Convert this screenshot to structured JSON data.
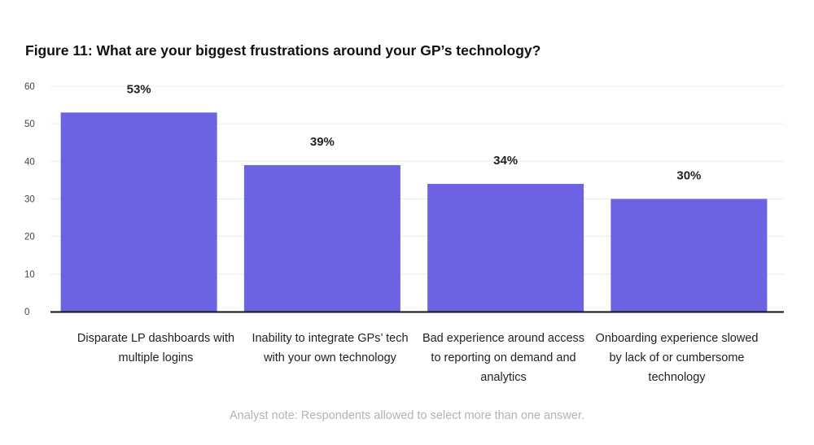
{
  "chart_data": {
    "type": "bar",
    "title": "Figure 11: What are your biggest frustrations around your GP’s technology?",
    "categories": [
      "Disparate LP dashboards with multiple logins",
      "Inability to integrate GPs’ tech with your own technology",
      "Bad experience around access to reporting on demand and analytics",
      "Onboarding experience slowed by lack of or cumbersome technology"
    ],
    "values": [
      53,
      39,
      34,
      30
    ],
    "data_labels": [
      "53%",
      "39%",
      "34%",
      "30%"
    ],
    "ylim": [
      0,
      60
    ],
    "yticks": [
      0,
      10,
      20,
      30,
      40,
      50,
      60
    ],
    "grid": true,
    "bar_color": "#6c63e3",
    "xlabel": "",
    "ylabel": ""
  },
  "note": "Analyst note: Respondents allowed to select more than one answer."
}
